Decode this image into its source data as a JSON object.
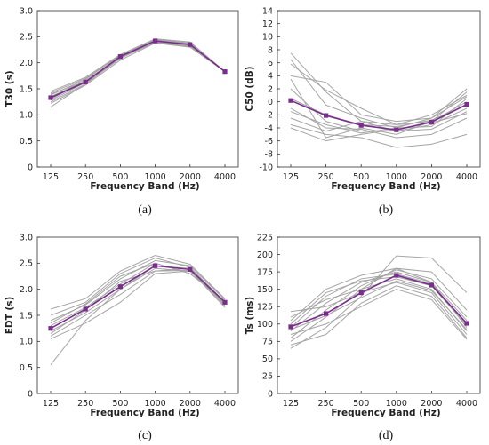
{
  "chart_data": [
    {
      "id": "a",
      "type": "line",
      "caption": "(a)",
      "xlabel": "Frequency Band (Hz)",
      "ylabel": "T30 (s)",
      "categories": [
        "125",
        "250",
        "500",
        "1000",
        "2000",
        "4000"
      ],
      "ylim": [
        0,
        3
      ],
      "yticks": [
        "0",
        "0.5",
        "1.0",
        "1.5",
        "2.0",
        "2.5",
        "3.0"
      ],
      "grid": false,
      "series_color": "#7b2d8e",
      "individual_color": "#a5a5a5",
      "mean": [
        1.33,
        1.63,
        2.12,
        2.42,
        2.35,
        1.83
      ],
      "individual": [
        [
          1.15,
          1.6,
          2.08,
          2.42,
          2.38,
          1.83
        ],
        [
          1.22,
          1.57,
          2.05,
          2.38,
          2.3,
          1.83
        ],
        [
          1.28,
          1.62,
          2.1,
          2.4,
          2.32,
          1.83
        ],
        [
          1.35,
          1.65,
          2.12,
          2.43,
          2.36,
          1.83
        ],
        [
          1.38,
          1.68,
          2.15,
          2.44,
          2.34,
          1.83
        ],
        [
          1.42,
          1.7,
          2.14,
          2.45,
          2.38,
          1.83
        ],
        [
          1.45,
          1.72,
          2.16,
          2.46,
          2.4,
          1.83
        ],
        [
          1.3,
          1.66,
          2.11,
          2.41,
          2.33,
          1.83
        ],
        [
          1.4,
          1.64,
          2.13,
          2.44,
          2.37,
          1.83
        ],
        [
          1.25,
          1.59,
          2.09,
          2.39,
          2.31,
          1.83
        ]
      ]
    },
    {
      "id": "b",
      "type": "line",
      "caption": "(b)",
      "xlabel": "Frequency Band (Hz)",
      "ylabel": "C50 (dB)",
      "categories": [
        "125",
        "250",
        "500",
        "1000",
        "2000",
        "4000"
      ],
      "ylim": [
        -10,
        14
      ],
      "yticks": [
        "-10",
        "-8",
        "-6",
        "-4",
        "-2",
        "0",
        "2",
        "4",
        "6",
        "8",
        "10",
        "12",
        "14"
      ],
      "grid": false,
      "series_color": "#7b2d8e",
      "individual_color": "#a5a5a5",
      "mean": [
        0.2,
        -2.1,
        -3.6,
        -4.3,
        -3.1,
        -0.4
      ],
      "individual": [
        [
          7.5,
          1.5,
          -3.0,
          -4.5,
          -4.2,
          -1.5
        ],
        [
          6.5,
          -0.5,
          -2.5,
          -4.0,
          -3.8,
          0.5
        ],
        [
          5.8,
          1.8,
          -1.0,
          -3.5,
          -3.0,
          1.5
        ],
        [
          4.0,
          3.0,
          -2.0,
          -3.0,
          -2.5,
          2.0
        ],
        [
          3.5,
          -5.5,
          -4.0,
          -5.0,
          -3.0,
          0.0
        ],
        [
          2.0,
          -3.0,
          -4.5,
          -4.5,
          -3.5,
          -1.0
        ],
        [
          0.5,
          -2.0,
          -3.5,
          -3.8,
          -2.8,
          -0.5
        ],
        [
          -1.0,
          -4.0,
          -4.2,
          -5.5,
          -5.0,
          -2.5
        ],
        [
          -2.5,
          -4.5,
          -3.0,
          -3.5,
          -2.0,
          1.0
        ],
        [
          -3.5,
          -5.0,
          -5.5,
          -7.0,
          -6.5,
          -5.0
        ],
        [
          -4.0,
          -6.0,
          -5.0,
          -4.2,
          -3.2,
          -1.8
        ],
        [
          -1.5,
          -3.5,
          -4.8,
          -4.0,
          -2.5,
          0.8
        ]
      ]
    },
    {
      "id": "c",
      "type": "line",
      "caption": "(c)",
      "xlabel": "Frequency Band (Hz)",
      "ylabel": "EDT (s)",
      "categories": [
        "125",
        "250",
        "500",
        "1000",
        "2000",
        "4000"
      ],
      "ylim": [
        0,
        3
      ],
      "yticks": [
        "0",
        "0.5",
        "1.0",
        "1.5",
        "2.0",
        "2.5",
        "3.0"
      ],
      "grid": false,
      "series_color": "#7b2d8e",
      "individual_color": "#a5a5a5",
      "mean": [
        1.25,
        1.62,
        2.05,
        2.45,
        2.38,
        1.75
      ],
      "individual": [
        [
          0.55,
          1.4,
          2.0,
          2.45,
          2.4,
          1.7
        ],
        [
          1.05,
          1.35,
          1.75,
          2.3,
          2.35,
          1.68
        ],
        [
          1.1,
          1.5,
          1.9,
          2.35,
          2.4,
          1.75
        ],
        [
          1.2,
          1.55,
          2.0,
          2.4,
          2.35,
          1.72
        ],
        [
          1.3,
          1.65,
          2.1,
          2.5,
          2.3,
          1.78
        ],
        [
          1.4,
          1.7,
          2.2,
          2.55,
          2.45,
          1.8
        ],
        [
          1.5,
          1.75,
          2.3,
          2.6,
          2.42,
          1.76
        ],
        [
          1.62,
          1.82,
          2.35,
          2.65,
          2.48,
          1.82
        ],
        [
          1.15,
          1.6,
          2.15,
          2.35,
          2.36,
          1.65
        ],
        [
          1.35,
          1.72,
          2.25,
          2.5,
          2.3,
          1.77
        ]
      ]
    },
    {
      "id": "d",
      "type": "line",
      "caption": "(d)",
      "xlabel": "Frequency Band (Hz)",
      "ylabel": "Ts (ms)",
      "categories": [
        "125",
        "250",
        "500",
        "1000",
        "2000",
        "4000"
      ],
      "ylim": [
        0,
        225
      ],
      "yticks": [
        "0",
        "25",
        "50",
        "75",
        "100",
        "125",
        "150",
        "175",
        "200",
        "225"
      ],
      "grid": false,
      "series_color": "#7b2d8e",
      "individual_color": "#a5a5a5",
      "mean": [
        96,
        115,
        145,
        170,
        156,
        101
      ],
      "individual": [
        [
          65,
          95,
          140,
          198,
          195,
          145
        ],
        [
          75,
          110,
          150,
          180,
          175,
          120
        ],
        [
          80,
          120,
          155,
          178,
          165,
          110
        ],
        [
          90,
          130,
          160,
          175,
          160,
          105
        ],
        [
          95,
          140,
          165,
          172,
          158,
          100
        ],
        [
          100,
          145,
          162,
          168,
          155,
          98
        ],
        [
          105,
          150,
          170,
          180,
          160,
          95
        ],
        [
          110,
          135,
          150,
          165,
          150,
          90
        ],
        [
          118,
          125,
          145,
          160,
          145,
          85
        ],
        [
          70,
          85,
          130,
          155,
          140,
          80
        ],
        [
          85,
          100,
          125,
          150,
          135,
          78
        ],
        [
          92,
          112,
          138,
          162,
          148,
          92
        ]
      ]
    }
  ]
}
